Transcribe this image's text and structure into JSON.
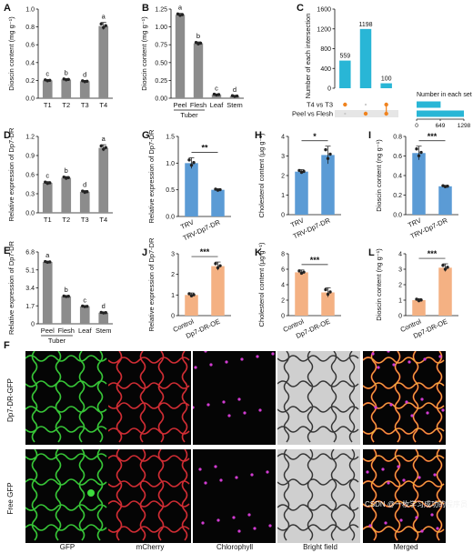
{
  "colors": {
    "gray_bar": "#8c8c8c",
    "blue_bar": "#5b9bd5",
    "orange_bar": "#f4b183",
    "upset_bar": "#29b6d6",
    "upset_dot": "#f0831e",
    "gfp_green": "#3ddc3d",
    "mcherry_red": "#e8323a",
    "chloro_magenta": "#d23cd2"
  },
  "chart_data": [
    {
      "panel": "A",
      "type": "bar",
      "categories": [
        "T1",
        "T2",
        "T3",
        "T4"
      ],
      "values": [
        0.2,
        0.21,
        0.19,
        0.81
      ],
      "errors": [
        0.01,
        0.01,
        0.01,
        0.04
      ],
      "letters": [
        "c",
        "b",
        "d",
        "a"
      ],
      "ylabel": "Dioscin content (mg g⁻¹)",
      "ylim": [
        0,
        1.0
      ],
      "yticks": [
        "0.0",
        "0.2",
        "0.4",
        "0.6",
        "0.8",
        "1.0"
      ],
      "yticks_num": [
        0,
        0.2,
        0.4,
        0.6,
        0.8,
        1.0
      ]
    },
    {
      "panel": "B",
      "type": "bar",
      "categories": [
        "Peel",
        "Flesh",
        "Leaf",
        "Stem"
      ],
      "values": [
        1.17,
        0.77,
        0.05,
        0.03
      ],
      "errors": [
        0.02,
        0.02,
        0.01,
        0.01
      ],
      "letters": [
        "a",
        "b",
        "c",
        "d"
      ],
      "group_label": "Tuber",
      "ylabel": "Dioscin content (mg g⁻¹)",
      "ylim": [
        0,
        1.25
      ],
      "yticks": [
        "0.00",
        "0.25",
        "0.50",
        "0.75",
        "1.00",
        "1.25"
      ],
      "yticks_num": [
        0,
        0.25,
        0.5,
        0.75,
        1.0,
        1.25
      ]
    },
    {
      "panel": "C",
      "type": "bar",
      "title": "",
      "categories": [
        "",
        "",
        ""
      ],
      "values": [
        559,
        1198,
        100
      ],
      "ylabel": "Number of each intersection",
      "ylim": [
        0,
        1600
      ],
      "yticks": [
        "0",
        "400",
        "800",
        "1200",
        "1600"
      ],
      "yticks_num": [
        0,
        400,
        800,
        1200,
        1600
      ],
      "sets": [
        "T4 vs T3",
        "Peel vs Flesh"
      ],
      "set_bar_label": "Number in each set",
      "set_axis_ticks": [
        "0",
        "649",
        "1298"
      ],
      "set_sizes": [
        659,
        1298
      ]
    },
    {
      "panel": "D",
      "type": "bar",
      "categories": [
        "T1",
        "T2",
        "T3",
        "T4"
      ],
      "values": [
        0.47,
        0.55,
        0.33,
        1.02
      ],
      "errors": [
        0.02,
        0.02,
        0.02,
        0.05
      ],
      "letters": [
        "c",
        "b",
        "d",
        "a"
      ],
      "ylabel": "Relative expression of Dp7-DR",
      "ylim": [
        0,
        1.2
      ],
      "yticks": [
        "0.0",
        "0.3",
        "0.6",
        "0.9",
        "1.2"
      ],
      "yticks_num": [
        0,
        0.3,
        0.6,
        0.9,
        1.2
      ]
    },
    {
      "panel": "E",
      "type": "bar",
      "categories": [
        "Peel",
        "Flesh",
        "Leaf",
        "Stem"
      ],
      "values": [
        5.85,
        2.6,
        1.65,
        1.05
      ],
      "errors": [
        0.07,
        0.05,
        0.05,
        0.05
      ],
      "letters": [
        "a",
        "b",
        "c",
        "d"
      ],
      "group_label": "Tuber",
      "ylabel": "Relative expression of Dp7-DR",
      "ylim": [
        0,
        6.8
      ],
      "yticks": [
        "0",
        "1.7",
        "3.4",
        "5.1",
        "6.8"
      ],
      "yticks_num": [
        0,
        1.7,
        3.4,
        5.1,
        6.8
      ]
    },
    {
      "panel": "G",
      "type": "bar",
      "categories": [
        "TRV",
        "TRV-Dp7-DR"
      ],
      "values": [
        1.0,
        0.5
      ],
      "errors": [
        0.1,
        0.02
      ],
      "sig": "**",
      "ylabel": "Relative expression of Dp7-DR",
      "ylim": [
        0,
        1.5
      ],
      "yticks": [
        "0.0",
        "0.5",
        "1.0",
        "1.5"
      ],
      "yticks_num": [
        0,
        0.5,
        1.0,
        1.5
      ]
    },
    {
      "panel": "H",
      "type": "bar",
      "categories": [
        "TRV",
        "TRV-Dp7-DR"
      ],
      "values": [
        2.2,
        3.05
      ],
      "errors": [
        0.1,
        0.45
      ],
      "sig": "*",
      "ylabel": "Cholesterol content (μg g⁻¹)",
      "ylim": [
        0,
        4
      ],
      "yticks": [
        "0",
        "1",
        "2",
        "3",
        "4"
      ],
      "yticks_num": [
        0,
        1,
        2,
        3,
        4
      ]
    },
    {
      "panel": "I",
      "type": "bar",
      "categories": [
        "TRV",
        "TRV-Dp7-DR"
      ],
      "values": [
        0.63,
        0.29
      ],
      "errors": [
        0.07,
        0.01
      ],
      "sig": "***",
      "ylabel": "Dioscin content (ng g⁻¹)",
      "ylim": [
        0,
        0.8
      ],
      "yticks": [
        "0.0",
        "0.2",
        "0.4",
        "0.6",
        "0.8"
      ],
      "yticks_num": [
        0,
        0.2,
        0.4,
        0.6,
        0.8
      ]
    },
    {
      "panel": "J",
      "type": "bar",
      "categories": [
        "Control",
        "Dp7-DR-OE"
      ],
      "values": [
        1.0,
        2.4
      ],
      "errors": [
        0.1,
        0.2
      ],
      "sig": "***",
      "ylabel": "Relative expression of Dp7-DR",
      "ylim": [
        0,
        3
      ],
      "yticks": [
        "0",
        "1",
        "2",
        "3"
      ],
      "yticks_num": [
        0,
        1,
        2,
        3
      ]
    },
    {
      "panel": "K",
      "type": "bar",
      "categories": [
        "Control",
        "Dp7-DR-OE"
      ],
      "values": [
        5.6,
        3.0
      ],
      "errors": [
        0.3,
        0.6
      ],
      "sig": "***",
      "ylabel": "Cholesterol content (μg g⁻¹)",
      "ylim": [
        0,
        8
      ],
      "yticks": [
        "0",
        "2",
        "4",
        "6",
        "8"
      ],
      "yticks_num": [
        0,
        2,
        4,
        6,
        8
      ]
    },
    {
      "panel": "L",
      "type": "bar",
      "categories": [
        "Control",
        "Dp7-DR-OE"
      ],
      "values": [
        1.0,
        3.1
      ],
      "errors": [
        0.1,
        0.25
      ],
      "sig": "***",
      "ylabel": "Dioscin content (ng g⁻¹)",
      "ylim": [
        0,
        4
      ],
      "yticks": [
        "0",
        "1",
        "2",
        "3",
        "4"
      ],
      "yticks_num": [
        0,
        1,
        2,
        3,
        4
      ]
    }
  ],
  "microscopy": {
    "letter": "F",
    "rows": [
      "Dp7-DR-GFP",
      "Free GFP"
    ],
    "columns": [
      "GFP",
      "mCherry",
      "Chlorophyll",
      "Bright field",
      "Merged"
    ]
  },
  "watermark": "CSDN @一枚学习成功的程序员"
}
